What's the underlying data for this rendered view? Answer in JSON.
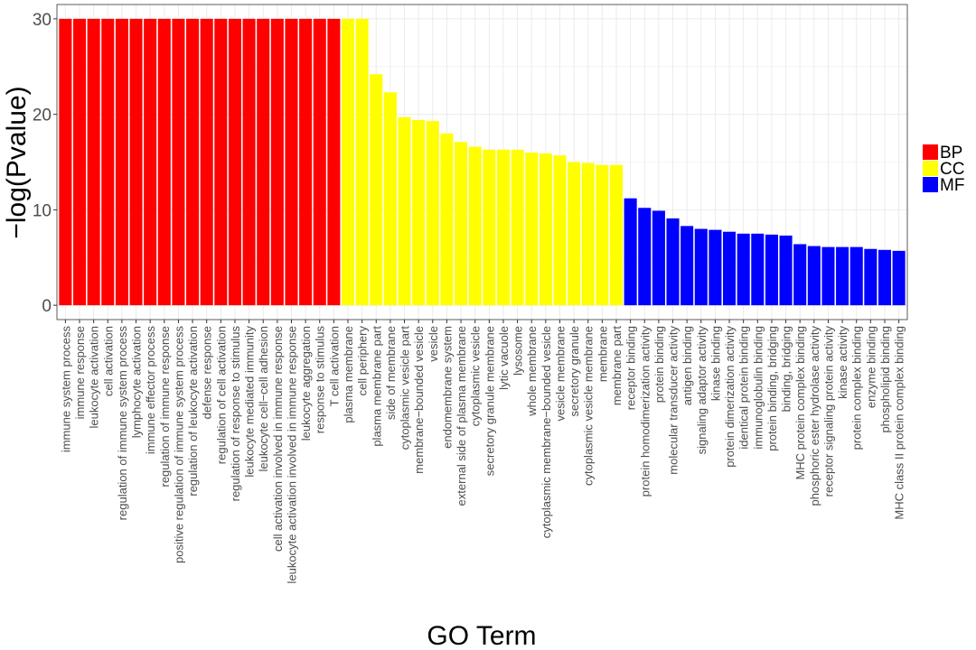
{
  "chart_data": {
    "type": "bar",
    "xlabel": "GO Term",
    "ylabel": "−log(Pvalue)",
    "ylim": [
      -1.5,
      31.5
    ],
    "yticks": [
      0,
      10,
      20,
      30
    ],
    "grid": true,
    "legend_position": "right",
    "legend": [
      {
        "name": "BP",
        "color": "#ff0000"
      },
      {
        "name": "CC",
        "color": "#ffff00"
      },
      {
        "name": "MF",
        "color": "#0000ff"
      }
    ],
    "categories": [
      "immune system process",
      "immune response",
      "leukocyte activation",
      "cell activation",
      "regulation of immune system process",
      "lymphocyte activation",
      "immune effector process",
      "regulation of immune response",
      "positive regulation of immune system process",
      "regulation of leukocyte activation",
      "defense response",
      "regulation of cell activation",
      "regulation of response to stimulus",
      "leukocyte mediated immunity",
      "leukocyte cell−cell adhesion",
      "cell activation involved in immune response",
      "leukocyte activation involved in immune response",
      "leukocyte aggregation",
      "response to stimulus",
      "T cell activation",
      "plasma membrane",
      "cell periphery",
      "plasma membrane part",
      "side of membrane",
      "cytoplasmic vesicle part",
      "membrane−bounded vesicle",
      "vesicle",
      "endomembrane system",
      "external side of plasma membrane",
      "cytoplasmic vesicle",
      "secretory granule membrane",
      "lytic vacuole",
      "lysosome",
      "whole membrane",
      "cytoplasmic membrane−bounded vesicle",
      "vesicle membrane",
      "secretory granule",
      "cytoplasmic vesicle membrane",
      "membrane",
      "membrane part",
      "receptor binding",
      "protein homodimerization activity",
      "protein binding",
      "molecular transducer activity",
      "antigen binding",
      "signaling adaptor activity",
      "kinase binding",
      "protein dimerization activity",
      "identical protein binding",
      "immunoglobulin binding",
      "protein binding, bridging",
      "binding, bridging",
      "MHC protein complex binding",
      "phosphoric ester hydrolase activity",
      "receptor signaling protein activity",
      "kinase activity",
      "protein complex binding",
      "enzyme binding",
      "phospholipid binding",
      "MHC class II protein complex binding"
    ],
    "groups": [
      "BP",
      "BP",
      "BP",
      "BP",
      "BP",
      "BP",
      "BP",
      "BP",
      "BP",
      "BP",
      "BP",
      "BP",
      "BP",
      "BP",
      "BP",
      "BP",
      "BP",
      "BP",
      "BP",
      "BP",
      "CC",
      "CC",
      "CC",
      "CC",
      "CC",
      "CC",
      "CC",
      "CC",
      "CC",
      "CC",
      "CC",
      "CC",
      "CC",
      "CC",
      "CC",
      "CC",
      "CC",
      "CC",
      "CC",
      "CC",
      "MF",
      "MF",
      "MF",
      "MF",
      "MF",
      "MF",
      "MF",
      "MF",
      "MF",
      "MF",
      "MF",
      "MF",
      "MF",
      "MF",
      "MF",
      "MF",
      "MF",
      "MF",
      "MF",
      "MF"
    ],
    "values": [
      30,
      30,
      30,
      30,
      30,
      30,
      30,
      30,
      30,
      30,
      30,
      30,
      30,
      30,
      30,
      30,
      30,
      30,
      30,
      30,
      30,
      30,
      24.2,
      22.3,
      19.7,
      19.4,
      19.3,
      18,
      17.1,
      16.6,
      16.3,
      16.3,
      16.3,
      16,
      15.9,
      15.7,
      15,
      14.9,
      14.7,
      14.7,
      11.2,
      10.2,
      9.9,
      9.1,
      8.3,
      8,
      7.9,
      7.7,
      7.5,
      7.5,
      7.4,
      7.3,
      6.4,
      6.2,
      6.1,
      6.1,
      6.1,
      5.9,
      5.8,
      5.7
    ]
  }
}
